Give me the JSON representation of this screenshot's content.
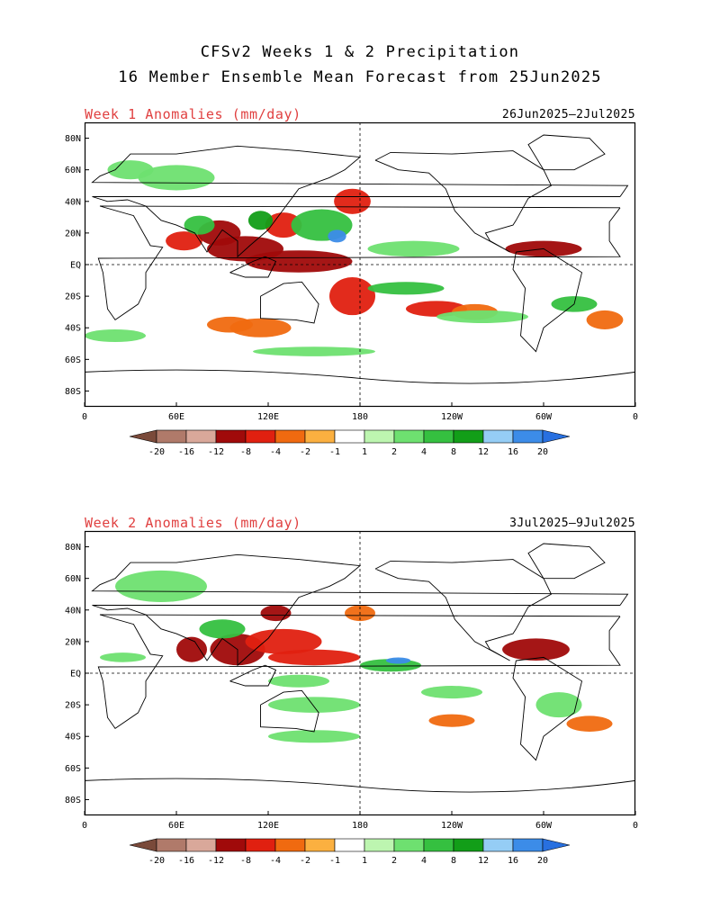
{
  "title_line1": "CFSv2 Weeks 1 & 2 Precipitation",
  "title_line2": "16 Member Ensemble Mean Forecast from 25Jun2025",
  "panels": [
    {
      "title": "Week 1 Anomalies (mm/day)",
      "date_range": "26Jun2025—2Jul2025",
      "blobs": [
        {
          "lon": 65,
          "lat": 15,
          "rx": 12,
          "ry": 6,
          "level": -4
        },
        {
          "lon": 88,
          "lat": 20,
          "rx": 14,
          "ry": 8,
          "level": -8
        },
        {
          "lon": 105,
          "lat": 10,
          "rx": 25,
          "ry": 8,
          "level": -8
        },
        {
          "lon": 140,
          "lat": 2,
          "rx": 35,
          "ry": 7,
          "level": -8
        },
        {
          "lon": 130,
          "lat": 25,
          "rx": 12,
          "ry": 8,
          "level": -4
        },
        {
          "lon": 175,
          "lat": -20,
          "rx": 15,
          "ry": 12,
          "level": -4
        },
        {
          "lon": 175,
          "lat": 40,
          "rx": 12,
          "ry": 8,
          "level": -4
        },
        {
          "lon": 230,
          "lat": -28,
          "rx": 20,
          "ry": 5,
          "level": -4
        },
        {
          "lon": 300,
          "lat": 10,
          "rx": 25,
          "ry": 5,
          "level": -8
        },
        {
          "lon": 255,
          "lat": -30,
          "rx": 15,
          "ry": 5,
          "level": -2
        },
        {
          "lon": 95,
          "lat": -38,
          "rx": 15,
          "ry": 5,
          "level": -2
        },
        {
          "lon": 340,
          "lat": -35,
          "rx": 12,
          "ry": 6,
          "level": -2
        },
        {
          "lon": 115,
          "lat": -40,
          "rx": 20,
          "ry": 6,
          "level": -2
        },
        {
          "lon": 155,
          "lat": 25,
          "rx": 20,
          "ry": 10,
          "level": 4
        },
        {
          "lon": 75,
          "lat": 25,
          "rx": 10,
          "ry": 6,
          "level": 4
        },
        {
          "lon": 115,
          "lat": 28,
          "rx": 8,
          "ry": 6,
          "level": 8
        },
        {
          "lon": 165,
          "lat": 18,
          "rx": 6,
          "ry": 4,
          "level": 16
        },
        {
          "lon": 215,
          "lat": 10,
          "rx": 30,
          "ry": 5,
          "level": 2
        },
        {
          "lon": 60,
          "lat": 55,
          "rx": 25,
          "ry": 8,
          "level": 2
        },
        {
          "lon": 30,
          "lat": 60,
          "rx": 15,
          "ry": 6,
          "level": 2
        },
        {
          "lon": 260,
          "lat": -33,
          "rx": 30,
          "ry": 4,
          "level": 2
        },
        {
          "lon": 150,
          "lat": -55,
          "rx": 40,
          "ry": 3,
          "level": 2
        },
        {
          "lon": 210,
          "lat": -15,
          "rx": 25,
          "ry": 4,
          "level": 4
        },
        {
          "lon": 320,
          "lat": -25,
          "rx": 15,
          "ry": 5,
          "level": 4
        },
        {
          "lon": 20,
          "lat": -45,
          "rx": 20,
          "ry": 4,
          "level": 2
        }
      ]
    },
    {
      "title": "Week 2 Anomalies (mm/day)",
      "date_range": "3Jul2025—9Jul2025",
      "blobs": [
        {
          "lon": 70,
          "lat": 15,
          "rx": 10,
          "ry": 8,
          "level": -8
        },
        {
          "lon": 100,
          "lat": 15,
          "rx": 18,
          "ry": 10,
          "level": -8
        },
        {
          "lon": 130,
          "lat": 20,
          "rx": 25,
          "ry": 8,
          "level": -4
        },
        {
          "lon": 150,
          "lat": 10,
          "rx": 30,
          "ry": 5,
          "level": -4
        },
        {
          "lon": 125,
          "lat": 38,
          "rx": 10,
          "ry": 5,
          "level": -8
        },
        {
          "lon": 180,
          "lat": 38,
          "rx": 10,
          "ry": 5,
          "level": -2
        },
        {
          "lon": 295,
          "lat": 15,
          "rx": 22,
          "ry": 7,
          "level": -8
        },
        {
          "lon": 240,
          "lat": -30,
          "rx": 15,
          "ry": 4,
          "level": -2
        },
        {
          "lon": 330,
          "lat": -32,
          "rx": 15,
          "ry": 5,
          "level": -2
        },
        {
          "lon": 200,
          "lat": 5,
          "rx": 20,
          "ry": 4,
          "level": 4
        },
        {
          "lon": 205,
          "lat": 8,
          "rx": 8,
          "ry": 2,
          "level": 16
        },
        {
          "lon": 90,
          "lat": 28,
          "rx": 15,
          "ry": 6,
          "level": 4
        },
        {
          "lon": 140,
          "lat": -5,
          "rx": 20,
          "ry": 4,
          "level": 2
        },
        {
          "lon": 50,
          "lat": 55,
          "rx": 30,
          "ry": 10,
          "level": 2
        },
        {
          "lon": 150,
          "lat": -20,
          "rx": 30,
          "ry": 5,
          "level": 2
        },
        {
          "lon": 240,
          "lat": -12,
          "rx": 20,
          "ry": 4,
          "level": 2
        },
        {
          "lon": 150,
          "lat": -40,
          "rx": 30,
          "ry": 4,
          "level": 2
        },
        {
          "lon": 310,
          "lat": -20,
          "rx": 15,
          "ry": 8,
          "level": 2
        },
        {
          "lon": 25,
          "lat": 10,
          "rx": 15,
          "ry": 3,
          "level": 2
        }
      ]
    }
  ],
  "x_ticks": [
    {
      "lon": 0,
      "label": "0"
    },
    {
      "lon": 60,
      "label": "60E"
    },
    {
      "lon": 120,
      "label": "120E"
    },
    {
      "lon": 180,
      "label": "180"
    },
    {
      "lon": 240,
      "label": "120W"
    },
    {
      "lon": 300,
      "label": "60W"
    },
    {
      "lon": 360,
      "label": "0"
    }
  ],
  "y_ticks": [
    {
      "lat": 80,
      "label": "80N"
    },
    {
      "lat": 60,
      "label": "60N"
    },
    {
      "lat": 40,
      "label": "40N"
    },
    {
      "lat": 20,
      "label": "20N"
    },
    {
      "lat": 0,
      "label": "EQ"
    },
    {
      "lat": -20,
      "label": "20S"
    },
    {
      "lat": -40,
      "label": "40S"
    },
    {
      "lat": -60,
      "label": "60S"
    },
    {
      "lat": -80,
      "label": "80S"
    }
  ],
  "legend": {
    "colors": [
      "#b07a6a",
      "#d9a89a",
      "#a00a0a",
      "#e02010",
      "#f06a10",
      "#fbb040",
      "#ffffff",
      "#bdf5b0",
      "#6ee070",
      "#35c040",
      "#129e18",
      "#95cdf5",
      "#3c8ce8"
    ],
    "low_color": "#7a4a3a",
    "high_color": "#2870e0",
    "levels": [
      -20,
      -16,
      -12,
      -8,
      -4,
      -2,
      -1,
      1,
      2,
      4,
      8,
      12,
      16,
      20
    ],
    "labels": [
      "-20",
      "-16",
      "-12",
      "-8",
      "-4",
      "-2",
      "-1",
      "1",
      "2",
      "4",
      "8",
      "12",
      "16",
      "20"
    ]
  }
}
